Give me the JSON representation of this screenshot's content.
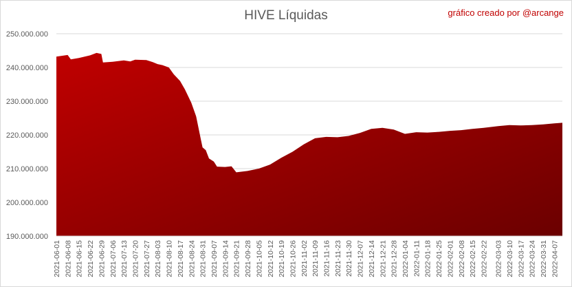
{
  "chart_data": {
    "type": "area",
    "title": "HIVE Líquidas",
    "credit": "gráfico creado por @arcange",
    "xlabel": "",
    "ylabel": "",
    "ylim": [
      190000000,
      250000000
    ],
    "y_ticks": [
      {
        "value": 190000000,
        "label": "190.000.000"
      },
      {
        "value": 200000000,
        "label": "200.000.000"
      },
      {
        "value": 210000000,
        "label": "210.000.000"
      },
      {
        "value": 220000000,
        "label": "220.000.000"
      },
      {
        "value": 230000000,
        "label": "230.000.000"
      },
      {
        "value": 240000000,
        "label": "240.000.000"
      },
      {
        "value": 250000000,
        "label": "250.000.000"
      }
    ],
    "x_ticks": [
      "2021-06-01",
      "2021-06-08",
      "2021-06-15",
      "2021-06-22",
      "2021-06-29",
      "2021-07-06",
      "2021-07-13",
      "2021-07-20",
      "2021-07-27",
      "2021-08-03",
      "2021-08-10",
      "2021-08-17",
      "2021-08-24",
      "2021-08-31",
      "2021-09-07",
      "2021-09-14",
      "2021-09-21",
      "2021-09-28",
      "2021-10-05",
      "2021-10-12",
      "2021-10-19",
      "2021-10-26",
      "2021-11-02",
      "2021-11-09",
      "2021-11-16",
      "2021-11-23",
      "2021-11-30",
      "2021-12-07",
      "2021-12-14",
      "2021-12-21",
      "2021-12-28",
      "2022-01-04",
      "2022-01-11",
      "2022-01-18",
      "2022-01-25",
      "2022-02-01",
      "2022-02-08",
      "2022-02-15",
      "2022-02-22",
      "2022-03-03",
      "2022-03-10",
      "2022-03-17",
      "2022-03-24",
      "2022-03-31",
      "2022-04-07"
    ],
    "grid": true,
    "legend": "none",
    "colors": {
      "fill_top": "#c00000",
      "fill_bottom": "#6b0000",
      "grid": "#d9d9d9",
      "text": "#595959",
      "credit": "#c00000"
    },
    "series": [
      {
        "x": [
          "2021-06-01",
          "2021-06-08",
          "2021-06-10",
          "2021-06-15",
          "2021-06-22",
          "2021-06-26",
          "2021-06-29",
          "2021-06-30",
          "2021-07-06",
          "2021-07-13",
          "2021-07-17",
          "2021-07-20",
          "2021-07-27",
          "2021-07-31",
          "2021-08-03",
          "2021-08-06",
          "2021-08-10",
          "2021-08-13",
          "2021-08-17",
          "2021-08-20",
          "2021-08-24",
          "2021-08-27",
          "2021-08-30",
          "2021-08-31",
          "2021-09-02",
          "2021-09-04",
          "2021-09-07",
          "2021-09-09",
          "2021-09-14",
          "2021-09-18",
          "2021-09-21",
          "2021-09-28",
          "2021-10-05",
          "2021-10-12",
          "2021-10-19",
          "2021-10-26",
          "2021-11-02",
          "2021-11-09",
          "2021-11-16",
          "2021-11-23",
          "2021-11-30",
          "2021-12-07",
          "2021-12-14",
          "2021-12-21",
          "2021-12-28",
          "2022-01-04",
          "2022-01-11",
          "2022-01-18",
          "2022-01-25",
          "2022-02-01",
          "2022-02-08",
          "2022-02-15",
          "2022-02-22",
          "2022-03-03",
          "2022-03-10",
          "2022-03-17",
          "2022-03-24",
          "2022-03-31",
          "2022-04-07",
          "2022-04-12"
        ],
        "values": [
          243200000,
          243700000,
          242400000,
          242800000,
          243600000,
          244300000,
          244000000,
          241500000,
          241700000,
          242100000,
          241800000,
          242300000,
          242200000,
          241600000,
          241000000,
          240700000,
          240000000,
          238000000,
          236000000,
          233500000,
          229500000,
          225500000,
          218500000,
          216300000,
          215500000,
          213000000,
          212100000,
          210600000,
          210500000,
          210700000,
          208900000,
          209300000,
          210000000,
          211200000,
          213200000,
          215000000,
          217200000,
          219000000,
          219400000,
          219300000,
          219700000,
          220600000,
          221800000,
          222100000,
          221600000,
          220300000,
          220800000,
          220700000,
          220900000,
          221200000,
          221400000,
          221800000,
          222100000,
          222600000,
          222900000,
          222800000,
          222900000,
          223100000,
          223400000,
          223600000
        ]
      }
    ]
  }
}
